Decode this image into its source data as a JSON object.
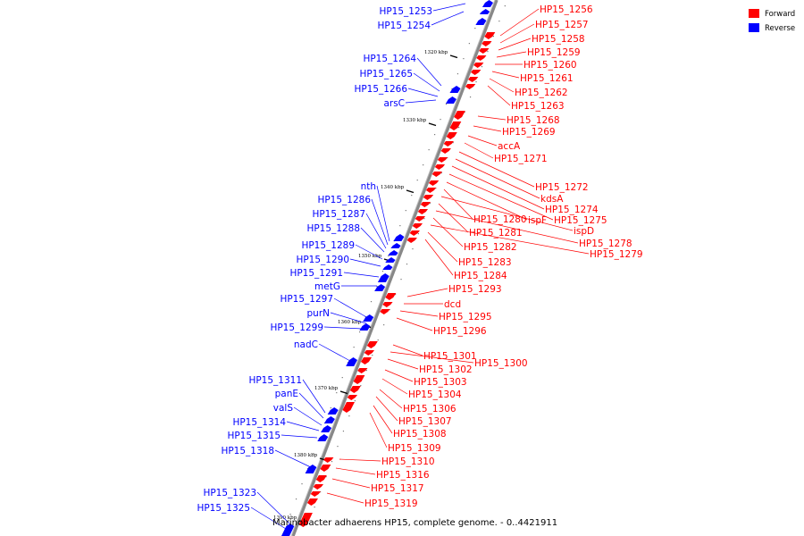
{
  "caption": "Marinobacter adhaerens HP15, complete genome. - 0..4421911",
  "colors": {
    "forward": "#ff0000",
    "reverse": "#0000ff",
    "backbone": "#888888"
  },
  "legend": [
    {
      "label": "Forward",
      "color": "#ff0000"
    },
    {
      "label": "Reverse",
      "color": "#0000ff"
    }
  ],
  "ticks": [
    "1320 kbp",
    "1330 kbp",
    "1340 kbp",
    "1350 kbp",
    "1360 kbp",
    "1370 kbp",
    "1380 kbp",
    "1390 kbp"
  ],
  "forward_labels": [
    "HP15_1256",
    "HP15_1257",
    "HP15_1258",
    "HP15_1259",
    "HP15_1260",
    "HP15_1261",
    "HP15_1262",
    "HP15_1263",
    "HP15_1268",
    "HP15_1269",
    "accA",
    "HP15_1271",
    "HP15_1272",
    "kdsA",
    "HP15_1274",
    "HP15_1275",
    "ispF",
    "HP15_1280",
    "ispD",
    "HP15_1281",
    "HP15_1278",
    "HP15_1282",
    "HP15_1279",
    "HP15_1283",
    "HP15_1284",
    "HP15_1293",
    "dcd",
    "HP15_1295",
    "HP15_1296",
    "HP15_1301",
    "HP15_1300",
    "HP15_1302",
    "HP15_1303",
    "HP15_1304",
    "HP15_1306",
    "HP15_1307",
    "HP15_1308",
    "HP15_1309",
    "HP15_1310",
    "HP15_1316",
    "HP15_1317",
    "HP15_1319"
  ],
  "reverse_labels": [
    "HP15_1253",
    "HP15_1254",
    "HP15_1264",
    "HP15_1265",
    "HP15_1266",
    "arsC",
    "nth",
    "HP15_1286",
    "HP15_1287",
    "HP15_1288",
    "HP15_1289",
    "HP15_1290",
    "HP15_1291",
    "metG",
    "HP15_1297",
    "purN",
    "HP15_1299",
    "nadC",
    "HP15_1311",
    "panE",
    "valS",
    "HP15_1314",
    "HP15_1315",
    "HP15_1318",
    "HP15_1323",
    "HP15_1325"
  ]
}
